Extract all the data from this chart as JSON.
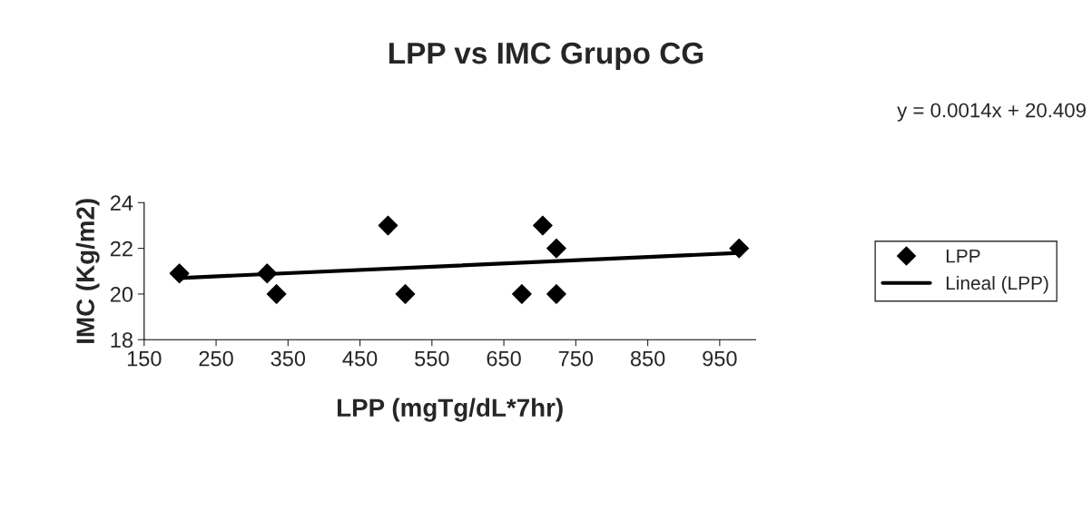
{
  "chart_data": {
    "type": "scatter",
    "title": "LPP vs IMC Grupo CG",
    "xlabel": "LPP (mgTg/dL*7hr)",
    "ylabel": "IMC (Kg/m2)",
    "annotations": [
      "y = 0.0014x + 20.409"
    ],
    "series": [
      {
        "name": "LPP",
        "color": "#000000",
        "marker": "diamond",
        "x": [
          199,
          321,
          334,
          489,
          513,
          675,
          704,
          723,
          723,
          977
        ],
        "values": [
          20.9,
          20.9,
          20,
          23,
          20,
          20,
          23,
          22,
          20,
          22
        ]
      },
      {
        "name": "Lineal (LPP)",
        "type": "line",
        "color": "#000000",
        "marker": "none",
        "line_style": "solid",
        "x": [
          199,
          977
        ],
        "values": [
          20.7,
          21.8
        ]
      }
    ],
    "xlim": [
      150,
      1000
    ],
    "xticks": [
      150,
      250,
      350,
      450,
      550,
      650,
      750,
      850,
      950
    ],
    "ylim": [
      18,
      24
    ],
    "yticks": [
      18,
      20,
      22,
      24
    ],
    "grid": false,
    "legend": "right"
  }
}
